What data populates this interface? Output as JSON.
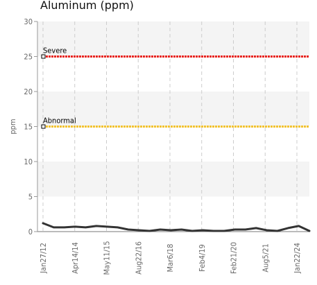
{
  "chart_data": {
    "type": "line",
    "title": "Aluminum (ppm)",
    "ylabel": "ppm",
    "xlabel": "",
    "ylim": [
      0,
      30
    ],
    "yticks": [
      0,
      5,
      10,
      15,
      20,
      25,
      30
    ],
    "x_tick_labels": [
      "Jan27/12",
      "Apr14/14",
      "May11/15",
      "Aug22/16",
      "Mar6/18",
      "Feb4/19",
      "Feb21/20",
      "Aug5/21",
      "Jan22/24"
    ],
    "grid": true,
    "limits": [
      {
        "label": "Severe",
        "value": 25,
        "color": "#e8231e"
      },
      {
        "label": "Abnormal",
        "value": 15,
        "color": "#f2c230"
      }
    ],
    "series": [
      {
        "color": "#333333",
        "values": [
          1.2,
          0.6,
          0.6,
          0.7,
          0.6,
          0.8,
          0.7,
          0.6,
          0.3,
          0.2,
          0.1,
          0.3,
          0.2,
          0.3,
          0.1,
          0.2,
          0.1,
          0.1,
          0.3,
          0.3,
          0.5,
          0.2,
          0.1,
          0.5,
          0.8,
          0.1
        ]
      }
    ]
  }
}
